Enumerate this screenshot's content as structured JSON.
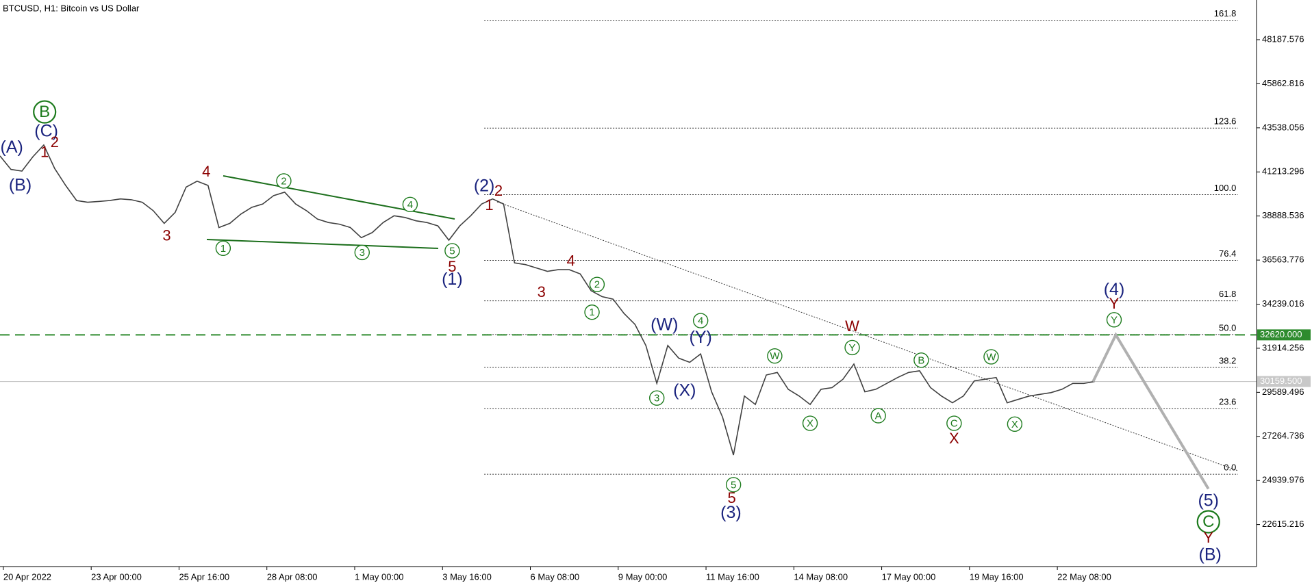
{
  "chart_data": {
    "type": "line",
    "title": "BTCUSD, H1:  Bitcoin vs US Dollar",
    "color": "#404040",
    "values": [
      42056,
      41346,
      41257,
      42011,
      42634,
      41390,
      40501,
      39702,
      39612,
      39657,
      39702,
      39790,
      39746,
      39612,
      39168,
      38502,
      39080,
      40413,
      40723,
      40501,
      38280,
      38502,
      38990,
      39346,
      39524,
      39968,
      40146,
      39524,
      39168,
      38724,
      38546,
      38457,
      38280,
      37747,
      38013,
      38546,
      38902,
      38813,
      38635,
      38546,
      38369,
      37613,
      38369,
      38902,
      39524,
      39790,
      39524,
      36414,
      36325,
      36148,
      35970,
      36059,
      36059,
      35836,
      34947,
      34636,
      34503,
      33748,
      33170,
      32060,
      30060,
      32060,
      31393,
      31171,
      31615,
      29616,
      28283,
      26283,
      29394,
      28949,
      30504,
      30637,
      29749,
      29394,
      28949,
      29749,
      29838,
      30282,
      31082,
      29616,
      29749,
      30060,
      30371,
      30637,
      30726,
      29838,
      29394,
      29038,
      29394,
      30193,
      30282,
      30371,
      29038,
      29216,
      29394,
      29483,
      29572,
      29749,
      30060,
      30060,
      30159.5
    ],
    "ylim": [
      20400,
      50280
    ],
    "yticks": [
      22615.216,
      24939.976,
      27264.736,
      29589.496,
      31914.256,
      34239.016,
      36563.776,
      38888.536,
      41213.296,
      43538.056,
      45862.816,
      48187.576
    ],
    "xticks": [
      "20 Apr 2022",
      "23 Apr 00:00",
      "25 Apr 16:00",
      "28 Apr 08:00",
      "1 May 00:00",
      "3 May 16:00",
      "6 May 08:00",
      "9 May 00:00",
      "11 May 16:00",
      "14 May 08:00",
      "17 May 00:00",
      "19 May 16:00",
      "22 May 08:00"
    ],
    "fib_levels": [
      {
        "label": "161.8",
        "value": 49209
      },
      {
        "label": "123.6",
        "value": 43523
      },
      {
        "label": "100.0",
        "value": 40013
      },
      {
        "label": "76.4",
        "value": 36548
      },
      {
        "label": "61.8",
        "value": 34416
      },
      {
        "label": "50.0",
        "value": 32639
      },
      {
        "label": "38.2",
        "value": 30907
      },
      {
        "label": "23.6",
        "value": 28730
      },
      {
        "label": "0.0",
        "value": 25265
      }
    ],
    "price_lines": [
      {
        "label": "32620.000",
        "value": 32620,
        "color": "#2e8b2e",
        "style": "dashed"
      },
      {
        "label": "30159.500",
        "value": 30159.5,
        "color": "#c8c8c8",
        "style": "solid"
      }
    ],
    "forecast": {
      "color": "#b0b0b0",
      "values": [
        30159.5,
        32620,
        24500
      ]
    },
    "wave_labels": [
      "(A)",
      "(B)",
      "B",
      "(C)",
      "1",
      "2",
      "4",
      "3",
      "2",
      "4",
      "1",
      "3",
      "5",
      "5",
      "(1)",
      "(2)",
      "2",
      "1",
      "4",
      "3",
      "2",
      "1",
      "(W)",
      "4",
      "(Y)",
      "3",
      "(X)",
      "5",
      "5",
      "(3)",
      "W",
      "Y",
      "W",
      "X",
      "A",
      "B",
      "C",
      "X",
      "W",
      "X",
      "(4)",
      "Y",
      "Y",
      "(5)",
      "C",
      "Y",
      "(B)"
    ]
  }
}
